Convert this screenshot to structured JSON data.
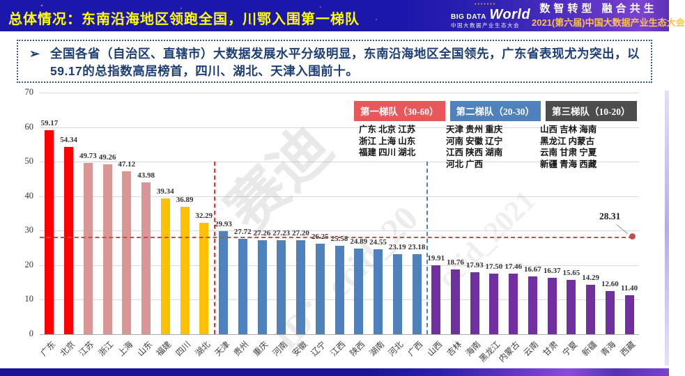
{
  "header": {
    "title": "总体情况：东南沿海地区领跑全国，川鄂入围第一梯队",
    "logo": {
      "brand_top": "BIG DATA",
      "brand_main": "World",
      "brand_sub": "中国大数据产业生态大会"
    },
    "slogan_line1": "数智转型 融合共生",
    "slogan_line2": "2021(第六届)中国大数据产业生态大会"
  },
  "summary": {
    "bullet": "➢",
    "text": "全国各省（自治区、直辖市）大数据发展水平分级明显，东南沿海地区全国领先，广东省表现尤为突出，以59.17的总指数高居榜首，四川、湖北、天津入围前十。"
  },
  "legend": {
    "tiers": [
      {
        "label": "第一梯队（30-60）",
        "color": "#E8575A",
        "members_lines": [
          "广东 北京 江苏",
          "浙江 上海 山东",
          "福建 四川 湖北"
        ]
      },
      {
        "label": "第二梯队（20-30）",
        "color": "#4F81BD",
        "members_lines": [
          "天津 贵州 重庆",
          "河南 安徽 辽宁",
          "江西 陕西 湖南",
          "河北 广西"
        ]
      },
      {
        "label": "第三梯队（10-20）",
        "color": "#4D4D4D",
        "members_lines": [
          "山西 吉林 海南",
          "黑龙江 内蒙古",
          "云南 甘肃 宁夏",
          "新疆 青海 西藏"
        ]
      }
    ]
  },
  "chart_data": {
    "type": "bar",
    "categories": [
      "广东",
      "北京",
      "江苏",
      "浙江",
      "上海",
      "山东",
      "福建",
      "四川",
      "湖北",
      "天津",
      "贵州",
      "重庆",
      "河南",
      "安徽",
      "辽宁",
      "江西",
      "陕西",
      "湖南",
      "河北",
      "广西",
      "山西",
      "吉林",
      "海南",
      "黑龙江",
      "内蒙古",
      "云南",
      "甘肃",
      "宁夏",
      "新疆",
      "青海",
      "西藏"
    ],
    "values": [
      59.17,
      54.34,
      49.73,
      49.26,
      47.12,
      43.98,
      39.34,
      36.89,
      32.29,
      29.93,
      27.72,
      27.26,
      27.23,
      27.2,
      26.25,
      25.58,
      24.89,
      24.55,
      23.19,
      23.18,
      19.91,
      18.76,
      17.93,
      17.5,
      17.46,
      16.67,
      16.37,
      15.65,
      14.29,
      12.6,
      11.4
    ],
    "bar_colors": [
      "#FE0000",
      "#FE0000",
      "#D99694",
      "#D99694",
      "#D99694",
      "#D99694",
      "#FFC000",
      "#FFC000",
      "#FFC000",
      "#4F81BD",
      "#4F81BD",
      "#4F81BD",
      "#4F81BD",
      "#4F81BD",
      "#4F81BD",
      "#4F81BD",
      "#4F81BD",
      "#4F81BD",
      "#4F81BD",
      "#4F81BD",
      "#7030A0",
      "#7030A0",
      "#7030A0",
      "#7030A0",
      "#7030A0",
      "#7030A0",
      "#7030A0",
      "#7030A0",
      "#7030A0",
      "#7030A0",
      "#7030A0"
    ],
    "title": "",
    "xlabel": "",
    "ylabel": "",
    "ylim": [
      0,
      70
    ],
    "yticks": [
      0,
      10,
      20,
      30,
      40,
      50,
      60,
      70
    ],
    "grid": true,
    "legend_position": "top-right",
    "reference_line": {
      "value": 28.31,
      "label": "28.31",
      "color": "#C0504D"
    },
    "dividers": [
      {
        "after_index": 8,
        "from_value": 50,
        "color": "#FF2B2B"
      },
      {
        "after_index": 19,
        "from_value": 50,
        "color": "#4F81BD"
      }
    ]
  },
  "watermarks": [
    "赛迪",
    "ID：ccid_20",
    "ccid_2021"
  ]
}
